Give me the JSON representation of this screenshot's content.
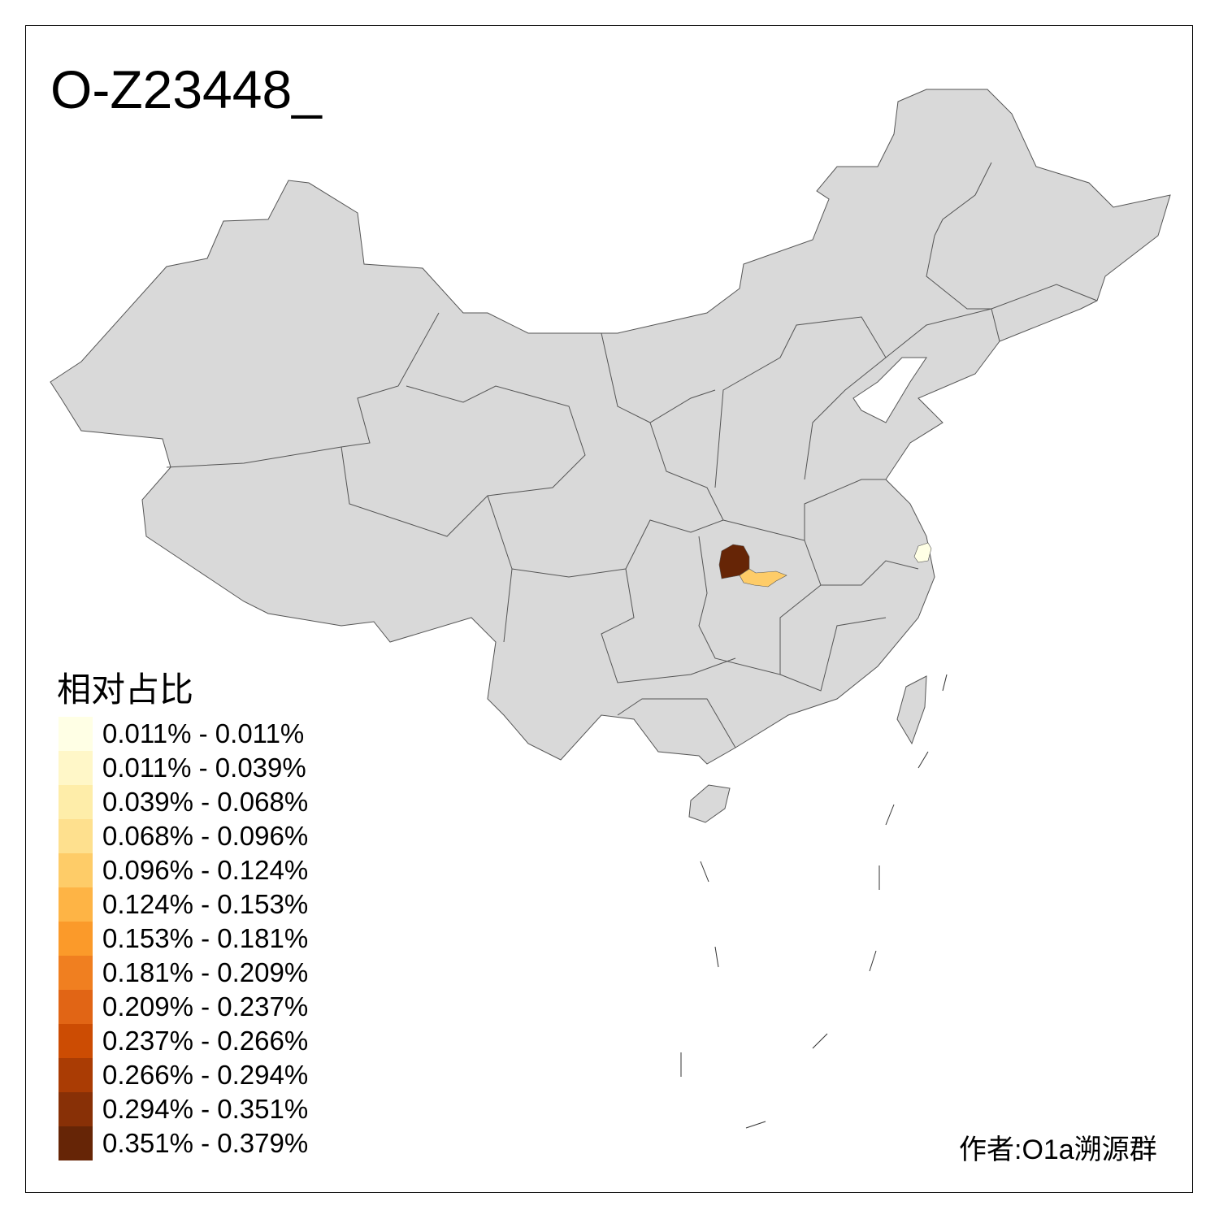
{
  "title": "O-Z23448_",
  "legend": {
    "title": "相对占比",
    "items": [
      {
        "label": "0.011% - 0.011%",
        "color": "#FFFFE5"
      },
      {
        "label": "0.011% - 0.039%",
        "color": "#FFF7C8"
      },
      {
        "label": "0.039% - 0.068%",
        "color": "#FEEDA9"
      },
      {
        "label": "0.068% - 0.096%",
        "color": "#FEE08E"
      },
      {
        "label": "0.096% - 0.124%",
        "color": "#FECC68"
      },
      {
        "label": "0.124% - 0.153%",
        "color": "#FEB445"
      },
      {
        "label": "0.153% - 0.181%",
        "color": "#FB9A2A"
      },
      {
        "label": "0.181% - 0.209%",
        "color": "#F07F20"
      },
      {
        "label": "0.209% - 0.237%",
        "color": "#E16515"
      },
      {
        "label": "0.237% - 0.266%",
        "color": "#CC4C03"
      },
      {
        "label": "0.266% - 0.294%",
        "color": "#AA3C04"
      },
      {
        "label": "0.294% - 0.351%",
        "color": "#883006"
      },
      {
        "label": "0.351% - 0.379%",
        "color": "#662506"
      }
    ]
  },
  "map": {
    "base_color": "#D9D9D9",
    "border_color": "#555555",
    "highlighted_regions": [
      {
        "bin": "0.351% - 0.379%",
        "color": "#662506"
      },
      {
        "bin": "0.096% - 0.124%",
        "color": "#FECC68"
      },
      {
        "bin": "0.011% - 0.011%",
        "color": "#FFFFE5"
      }
    ]
  },
  "author": "作者:O1a溯源群"
}
